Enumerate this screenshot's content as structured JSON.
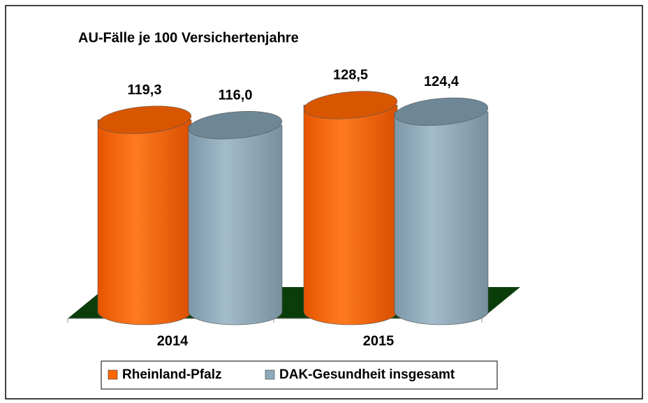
{
  "chart_data": {
    "type": "bar3d",
    "title": "AU-Fälle je 100 Versichertenjahre",
    "categories": [
      "2014",
      "2015"
    ],
    "series": [
      {
        "name": "Rheinland-Pfalz",
        "color": "#ff6600",
        "values": [
          119.3,
          128.5
        ],
        "value_labels": [
          "119,3",
          "128,5"
        ]
      },
      {
        "name": "DAK-Gesundheit insgesamt",
        "color": "#8eaaba",
        "values": [
          116.0,
          124.4
        ],
        "value_labels": [
          "116,0",
          "124,4"
        ]
      }
    ],
    "floor_color": "#0b3d0b"
  }
}
